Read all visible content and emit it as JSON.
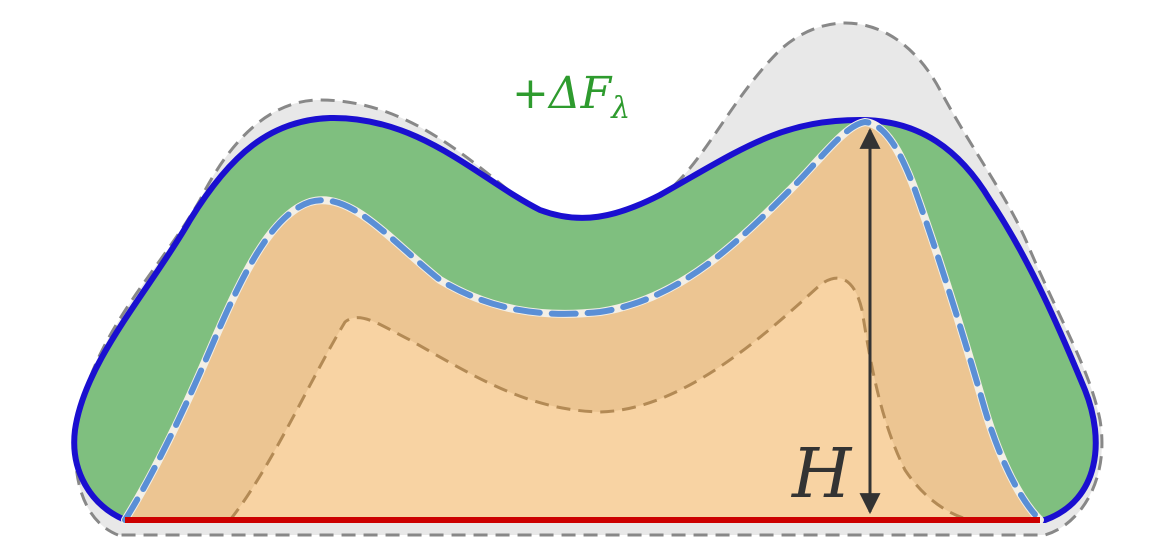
{
  "labels": {
    "delta_prefix": "+Δ",
    "delta_var": "F",
    "delta_sub": "λ",
    "height": "H"
  },
  "colors": {
    "outer_boundary": "#1a0fd0",
    "outer_fill": "#7fbf7f",
    "ghost_fill": "#e8e8e8",
    "ghost_dash": "#888888",
    "inner_band": "#ecc592",
    "core_fill": "#f8d3a3",
    "inner_dash": "#5a8fd6",
    "core_dash": "#b38a55",
    "baseline": "#cc0000",
    "arrow": "#333333",
    "delta_text": "#2e9b2e",
    "height_text": "#333333"
  }
}
